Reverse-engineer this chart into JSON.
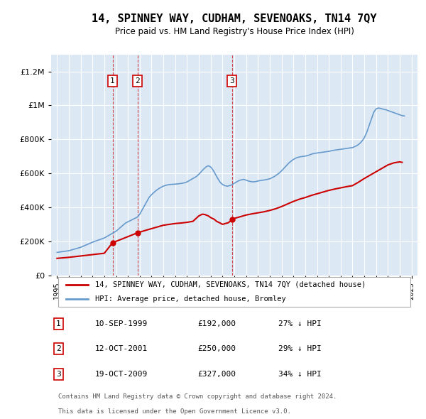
{
  "title": "14, SPINNEY WAY, CUDHAM, SEVENOAKS, TN14 7QY",
  "subtitle": "Price paid vs. HM Land Registry's House Price Index (HPI)",
  "background_color": "#dce9f5",
  "plot_bg_color": "#dce9f5",
  "legend_line1": "14, SPINNEY WAY, CUDHAM, SEVENOAKS, TN14 7QY (detached house)",
  "legend_line2": "HPI: Average price, detached house, Bromley",
  "footer1": "Contains HM Land Registry data © Crown copyright and database right 2024.",
  "footer2": "This data is licensed under the Open Government Licence v3.0.",
  "transactions": [
    {
      "num": 1,
      "date": "10-SEP-1999",
      "price": 192000,
      "pct": "27% ↓ HPI",
      "year": 1999.7
    },
    {
      "num": 2,
      "date": "12-OCT-2001",
      "price": 250000,
      "pct": "29% ↓ HPI",
      "year": 2001.8
    },
    {
      "num": 3,
      "date": "19-OCT-2009",
      "price": 327000,
      "pct": "34% ↓ HPI",
      "year": 2009.8
    }
  ],
  "red_line_color": "#cc0000",
  "blue_line_color": "#6699cc",
  "hpi_line": {
    "years": [
      1995.0,
      1995.1,
      1995.2,
      1995.3,
      1995.4,
      1995.5,
      1995.6,
      1995.7,
      1995.8,
      1995.9,
      1996.0,
      1996.1,
      1996.2,
      1996.3,
      1996.4,
      1996.5,
      1996.6,
      1996.7,
      1996.8,
      1996.9,
      1997.0,
      1997.1,
      1997.2,
      1997.3,
      1997.4,
      1997.5,
      1997.6,
      1997.7,
      1997.8,
      1997.9,
      1998.0,
      1998.2,
      1998.4,
      1998.6,
      1998.8,
      1999.0,
      1999.2,
      1999.4,
      1999.6,
      1999.8,
      2000.0,
      2000.2,
      2000.4,
      2000.6,
      2000.8,
      2001.0,
      2001.2,
      2001.4,
      2001.6,
      2001.8,
      2002.0,
      2002.2,
      2002.4,
      2002.6,
      2002.8,
      2003.0,
      2003.2,
      2003.4,
      2003.6,
      2003.8,
      2004.0,
      2004.2,
      2004.4,
      2004.6,
      2004.8,
      2005.0,
      2005.2,
      2005.4,
      2005.6,
      2005.8,
      2006.0,
      2006.2,
      2006.4,
      2006.6,
      2006.8,
      2007.0,
      2007.2,
      2007.4,
      2007.6,
      2007.8,
      2008.0,
      2008.2,
      2008.4,
      2008.6,
      2008.8,
      2009.0,
      2009.2,
      2009.4,
      2009.6,
      2009.8,
      2010.0,
      2010.2,
      2010.4,
      2010.6,
      2010.8,
      2011.0,
      2011.2,
      2011.4,
      2011.6,
      2011.8,
      2012.0,
      2012.2,
      2012.4,
      2012.6,
      2012.8,
      2013.0,
      2013.2,
      2013.4,
      2013.6,
      2013.8,
      2014.0,
      2014.2,
      2014.4,
      2014.6,
      2014.8,
      2015.0,
      2015.2,
      2015.4,
      2015.6,
      2015.8,
      2016.0,
      2016.2,
      2016.4,
      2016.6,
      2016.8,
      2017.0,
      2017.2,
      2017.4,
      2017.6,
      2017.8,
      2018.0,
      2018.2,
      2018.4,
      2018.6,
      2018.8,
      2019.0,
      2019.2,
      2019.4,
      2019.6,
      2019.8,
      2020.0,
      2020.2,
      2020.4,
      2020.6,
      2020.8,
      2021.0,
      2021.2,
      2021.4,
      2021.6,
      2021.8,
      2022.0,
      2022.2,
      2022.4,
      2022.6,
      2022.8,
      2023.0,
      2023.2,
      2023.4,
      2023.6,
      2023.8,
      2024.0,
      2024.2,
      2024.4
    ],
    "values": [
      135000,
      136000,
      137000,
      138000,
      139000,
      140000,
      141000,
      142000,
      143000,
      144000,
      145000,
      147000,
      149000,
      151000,
      153000,
      155000,
      157000,
      159000,
      161000,
      163000,
      165000,
      168000,
      171000,
      174000,
      177000,
      180000,
      183000,
      186000,
      189000,
      192000,
      195000,
      200000,
      205000,
      210000,
      215000,
      220000,
      228000,
      236000,
      244000,
      252000,
      260000,
      272000,
      284000,
      296000,
      308000,
      315000,
      322000,
      329000,
      336000,
      343000,
      360000,
      385000,
      410000,
      435000,
      460000,
      475000,
      488000,
      500000,
      510000,
      518000,
      525000,
      530000,
      533000,
      535000,
      536000,
      537000,
      538000,
      540000,
      542000,
      545000,
      550000,
      558000,
      566000,
      574000,
      582000,
      595000,
      610000,
      625000,
      638000,
      645000,
      638000,
      620000,
      595000,
      570000,
      548000,
      535000,
      528000,
      525000,
      528000,
      533000,
      542000,
      550000,
      558000,
      562000,
      565000,
      560000,
      555000,
      552000,
      550000,
      552000,
      555000,
      558000,
      560000,
      562000,
      565000,
      568000,
      575000,
      582000,
      592000,
      602000,
      615000,
      630000,
      645000,
      660000,
      672000,
      682000,
      690000,
      695000,
      698000,
      700000,
      702000,
      705000,
      710000,
      715000,
      718000,
      720000,
      722000,
      724000,
      726000,
      728000,
      730000,
      733000,
      736000,
      738000,
      740000,
      742000,
      744000,
      746000,
      748000,
      750000,
      752000,
      758000,
      765000,
      775000,
      790000,
      810000,
      840000,
      880000,
      920000,
      960000,
      980000,
      985000,
      982000,
      978000,
      975000,
      970000,
      965000,
      960000,
      955000,
      950000,
      945000,
      940000,
      938000
    ]
  },
  "red_line": {
    "years": [
      1995.0,
      1995.5,
      1996.0,
      1996.5,
      1997.0,
      1997.5,
      1998.0,
      1998.5,
      1999.0,
      1999.7,
      2001.8,
      2002.5,
      2003.0,
      2003.5,
      2004.0,
      2004.5,
      2005.0,
      2005.5,
      2006.0,
      2006.5,
      2007.0,
      2007.3,
      2007.5,
      2007.8,
      2008.0,
      2008.3,
      2008.5,
      2008.8,
      2009.0,
      2009.5,
      2009.8,
      2010.0,
      2010.5,
      2011.0,
      2011.5,
      2012.0,
      2012.5,
      2013.0,
      2013.5,
      2014.0,
      2014.5,
      2015.0,
      2015.5,
      2016.0,
      2016.5,
      2017.0,
      2017.5,
      2018.0,
      2018.5,
      2019.0,
      2019.5,
      2020.0,
      2020.5,
      2021.0,
      2021.5,
      2022.0,
      2022.5,
      2023.0,
      2023.5,
      2024.0,
      2024.2
    ],
    "values": [
      100000,
      103000,
      106000,
      110000,
      114000,
      118000,
      122000,
      126000,
      130000,
      192000,
      250000,
      265000,
      275000,
      285000,
      295000,
      300000,
      305000,
      308000,
      312000,
      318000,
      350000,
      360000,
      358000,
      350000,
      340000,
      330000,
      318000,
      308000,
      300000,
      310000,
      327000,
      335000,
      345000,
      355000,
      362000,
      368000,
      374000,
      382000,
      392000,
      405000,
      420000,
      435000,
      448000,
      458000,
      470000,
      480000,
      490000,
      500000,
      508000,
      515000,
      522000,
      528000,
      548000,
      570000,
      590000,
      610000,
      630000,
      650000,
      662000,
      668000,
      665000
    ]
  },
  "ylim": [
    0,
    1300000
  ],
  "xlim": [
    1994.5,
    2025.5
  ],
  "yticks": [
    0,
    200000,
    400000,
    600000,
    800000,
    1000000,
    1200000
  ],
  "ytick_labels": [
    "£0",
    "£200K",
    "£400K",
    "£600K",
    "£800K",
    "£1M",
    "£1.2M"
  ],
  "xticks": [
    1995,
    1996,
    1997,
    1998,
    1999,
    2000,
    2001,
    2002,
    2003,
    2004,
    2005,
    2006,
    2007,
    2008,
    2009,
    2010,
    2011,
    2012,
    2013,
    2014,
    2015,
    2016,
    2017,
    2018,
    2019,
    2020,
    2021,
    2022,
    2023,
    2024,
    2025
  ]
}
